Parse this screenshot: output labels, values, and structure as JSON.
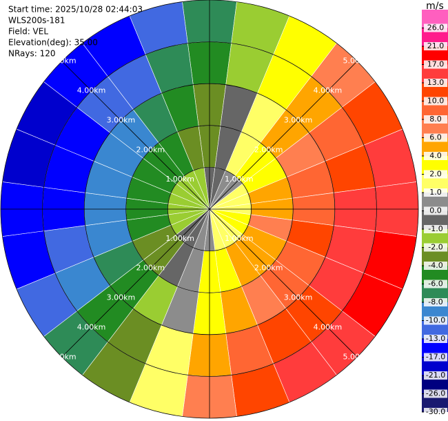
{
  "chart_data": {
    "type": "ppi",
    "info": [
      "Start time: 2025/10/28 02:44:03",
      "WLS200s-181",
      "Field: VEL",
      "Elevation(deg): 35.00",
      "NRays: 120"
    ],
    "rlim": [
      0,
      5
    ],
    "rticks": [
      {
        "value": 1,
        "label": "1.00km"
      },
      {
        "value": 2,
        "label": "2.00km"
      },
      {
        "value": 3,
        "label": "3.00km"
      },
      {
        "value": 4,
        "label": "4.00km"
      },
      {
        "value": 5,
        "label": "5.00km"
      }
    ],
    "values": [
      [
        -0.7,
        -0.2,
        0.3,
        0.8,
        1.3,
        1.6,
        1.9,
        2,
        2,
        1.8,
        1.5,
        1.1,
        0.7,
        0.2,
        -0.3,
        -0.8,
        -1.3,
        -1.6,
        -1.9,
        -2,
        -2,
        -1.8,
        -1.5,
        -1.1
      ],
      [
        -2.1,
        -0.5,
        1,
        2.5,
        3.9,
        4.9,
        5.6,
        6,
        5.9,
        5.4,
        4.6,
        3.4,
        2.1,
        0.5,
        -1,
        -2.5,
        -3.9,
        -4.9,
        -5.6,
        -6,
        -5.9,
        -5.4,
        -4.6,
        -3.4
      ],
      [
        -3.4,
        -0.9,
        1.7,
        4.2,
        6.4,
        8.2,
        9.4,
        10,
        9.9,
        9.1,
        7.7,
        5.7,
        3.4,
        0.9,
        -1.7,
        -4.2,
        -6.4,
        -8.2,
        -9.4,
        -10,
        -9.9,
        -9.1,
        -7.7,
        -5.7
      ],
      [
        -4.8,
        -1.2,
        2.4,
        5.9,
        9,
        11.5,
        13.2,
        13.9,
        13.8,
        12.7,
        10.7,
        8,
        4.8,
        1.2,
        -2.4,
        -5.9,
        -9,
        -11.5,
        -13.2,
        -13.9,
        -13.8,
        -12.7,
        -10.7,
        -8
      ],
      [
        -6.2,
        -1.6,
        3.1,
        7.6,
        11.6,
        14.7,
        16.9,
        17.9,
        17.7,
        16.3,
        13.8,
        10.3,
        6.2,
        1.6,
        -3.1,
        -7.6,
        -11.6,
        -14.7,
        -16.9,
        -17.9,
        -17.7,
        -16.3,
        -13.8,
        -10.3
      ]
    ],
    "colorbar": {
      "label": "m/s",
      "ticks": [
        {
          "value": 26,
          "label": "26.0"
        },
        {
          "value": 21,
          "label": "21.0"
        },
        {
          "value": 17,
          "label": "17.0"
        },
        {
          "value": 13,
          "label": "13.0"
        },
        {
          "value": 10,
          "label": "10.0"
        },
        {
          "value": 8,
          "label": "8.0"
        },
        {
          "value": 6,
          "label": "6.0"
        },
        {
          "value": 4,
          "label": "4.0"
        },
        {
          "value": 2,
          "label": "2.0"
        },
        {
          "value": 1,
          "label": "1.0"
        },
        {
          "value": 0,
          "label": "0.0"
        },
        {
          "value": -1,
          "label": "-1.0"
        },
        {
          "value": -2,
          "label": "-2.0"
        },
        {
          "value": -4,
          "label": "-4.0"
        },
        {
          "value": -6,
          "label": "-6.0"
        },
        {
          "value": -8,
          "label": "-8.0"
        },
        {
          "value": -10,
          "label": "-10.0"
        },
        {
          "value": -13,
          "label": "-13.0"
        },
        {
          "value": -17,
          "label": "-17.0"
        },
        {
          "value": -21,
          "label": "-21.0"
        },
        {
          "value": -26,
          "label": "-26.0"
        },
        {
          "value": -30,
          "label": "-30.0"
        }
      ],
      "colors": [
        "#ff5fbf",
        "#ff1a8c",
        "#ff0000",
        "#ff3c3c",
        "#ff4500",
        "#ff6633",
        "#ff7f50",
        "#ffa500",
        "#ffff00",
        "#ffff66",
        "#8c8c8c",
        "#666666",
        "#9acd32",
        "#6b8e23",
        "#228b22",
        "#2e8b57",
        "#3a87d0",
        "#4169e1",
        "#0000ff",
        "#0000cd",
        "#000080",
        "#191970"
      ]
    }
  }
}
